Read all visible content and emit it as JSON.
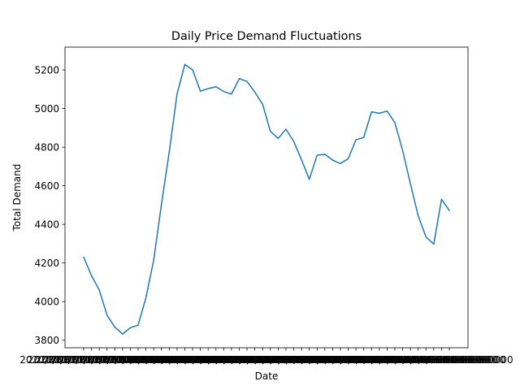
{
  "chart_data": {
    "type": "line",
    "title": "Daily Price Demand Fluctuations",
    "xlabel": "Date",
    "ylabel": "Total Demand",
    "grid": false,
    "legend": "none",
    "x_tick_text": "2020/01/01 00:00:000000",
    "y_ticks": [
      3800,
      4000,
      4200,
      4400,
      4600,
      4800,
      5000,
      5200
    ],
    "ylim": [
      3761,
      5318
    ],
    "series": [
      {
        "color": "#1f77b4",
        "values": [
          4230,
          4135,
          4060,
          3930,
          3868,
          3832,
          3865,
          3878,
          4020,
          4215,
          4505,
          4775,
          5075,
          5228,
          5200,
          5090,
          5103,
          5113,
          5088,
          5075,
          5155,
          5140,
          5085,
          5022,
          4882,
          4845,
          4893,
          4830,
          4735,
          4633,
          4758,
          4763,
          4733,
          4715,
          4740,
          4838,
          4850,
          4983,
          4975,
          4987,
          4927,
          4783,
          4610,
          4445,
          4335,
          4298,
          4530,
          4472
        ]
      }
    ]
  }
}
